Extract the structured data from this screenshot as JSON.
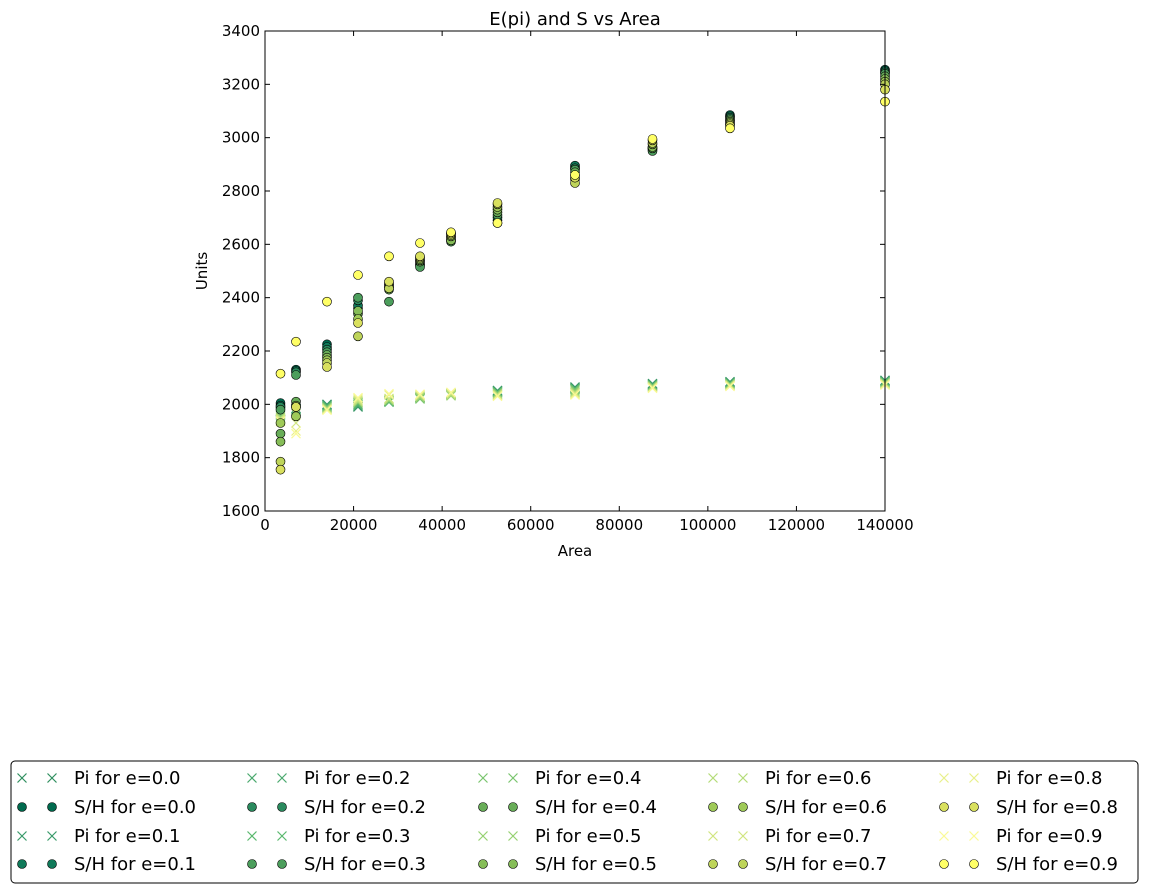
{
  "chart_data": {
    "type": "scatter",
    "title": "E(pi) and S vs Area",
    "xlabel": "Area",
    "ylabel": "Units",
    "xlim": [
      0,
      140000
    ],
    "ylim": [
      1600,
      3400
    ],
    "xticks": [
      "0",
      "20000",
      "40000",
      "60000",
      "80000",
      "100000",
      "120000",
      "140000"
    ],
    "yticks": [
      "1600",
      "1800",
      "2000",
      "2200",
      "2400",
      "2600",
      "2800",
      "3000",
      "3200",
      "3400"
    ],
    "grid": false,
    "legend_position": "below plot, 5 columns",
    "x": [
      3500,
      7000,
      14000,
      21000,
      28000,
      35000,
      42000,
      52500,
      70000,
      87500,
      105000,
      140000
    ],
    "series": [
      {
        "name": "Pi for e=0.0",
        "marker": "x",
        "color": "#2f8f5f",
        "values": [
          1975,
          1985,
          2000,
          1990,
          2010,
          2025,
          2040,
          2050,
          2065,
          2078,
          2085,
          2090
        ]
      },
      {
        "name": "S/H for e=0.0",
        "marker": "o",
        "color": "#006a4e",
        "values": [
          2005,
          2130,
          2225,
          2360,
          2440,
          2520,
          2615,
          2690,
          2890,
          2960,
          3085,
          3255
        ]
      },
      {
        "name": "Pi for e=0.1",
        "marker": "x",
        "color": "#3a9a6a",
        "values": [
          1972,
          1983,
          1998,
          1992,
          2012,
          2027,
          2042,
          2052,
          2063,
          2076,
          2083,
          2088
        ]
      },
      {
        "name": "S/H for e=0.1",
        "marker": "o",
        "color": "#107a5a",
        "values": [
          1995,
          2125,
          2215,
          2370,
          2445,
          2525,
          2620,
          2680,
          2895,
          2965,
          3080,
          3250
        ]
      },
      {
        "name": "Pi for e=0.2",
        "marker": "x",
        "color": "#4aa96e",
        "values": [
          1968,
          1980,
          1995,
          1995,
          2008,
          2024,
          2038,
          2048,
          2060,
          2074,
          2081,
          2086
        ]
      },
      {
        "name": "S/H for e=0.2",
        "marker": "o",
        "color": "#2a8a5e",
        "values": [
          1990,
          2120,
          2205,
          2390,
          2450,
          2530,
          2625,
          2700,
          2885,
          2955,
          3075,
          3245
        ]
      },
      {
        "name": "Pi for e=0.3",
        "marker": "x",
        "color": "#5ab86e",
        "values": [
          1962,
          1978,
          1993,
          2000,
          2010,
          2022,
          2036,
          2046,
          2058,
          2072,
          2079,
          2084
        ]
      },
      {
        "name": "S/H for e=0.3",
        "marker": "o",
        "color": "#4c9e5c",
        "values": [
          1980,
          2110,
          2195,
          2400,
          2385,
          2515,
          2610,
          2710,
          2880,
          2950,
          3070,
          3240
        ]
      },
      {
        "name": "Pi for e=0.4",
        "marker": "x",
        "color": "#79c46e",
        "values": [
          1958,
          1975,
          1990,
          2005,
          2012,
          2020,
          2034,
          2044,
          2055,
          2070,
          2077,
          2082
        ]
      },
      {
        "name": "S/H for e=0.4",
        "marker": "o",
        "color": "#68ad58",
        "values": [
          1890,
          2010,
          2185,
          2340,
          2430,
          2535,
          2640,
          2720,
          2870,
          2960,
          3065,
          3230
        ]
      },
      {
        "name": "Pi for e=0.5",
        "marker": "x",
        "color": "#96d072",
        "values": [
          1952,
          1972,
          1987,
          2008,
          2015,
          2025,
          2032,
          2040,
          2050,
          2068,
          2075,
          2080
        ]
      },
      {
        "name": "S/H for e=0.5",
        "marker": "o",
        "color": "#86bd58",
        "values": [
          1860,
          1995,
          2175,
          2350,
          2440,
          2540,
          2615,
          2730,
          2860,
          2965,
          3060,
          3220
        ]
      },
      {
        "name": "Pi for e=0.6",
        "marker": "x",
        "color": "#b3dc78",
        "values": [
          1948,
          1965,
          1984,
          2010,
          2018,
          2030,
          2035,
          2038,
          2045,
          2066,
          2073,
          2078
        ]
      },
      {
        "name": "S/H for e=0.6",
        "marker": "o",
        "color": "#9fca58",
        "values": [
          1930,
          1955,
          2165,
          2320,
          2455,
          2545,
          2630,
          2740,
          2845,
          2975,
          3055,
          3210
        ]
      },
      {
        "name": "Pi for e=0.7",
        "marker": "x",
        "color": "#d0e680",
        "values": [
          1945,
          1930,
          1982,
          2015,
          2022,
          2033,
          2040,
          2035,
          2042,
          2064,
          2071,
          2076
        ]
      },
      {
        "name": "S/H for e=0.7",
        "marker": "o",
        "color": "#bed45a",
        "values": [
          1785,
          1990,
          2155,
          2255,
          2435,
          2550,
          2635,
          2750,
          2830,
          2980,
          3050,
          3200
        ]
      },
      {
        "name": "Pi for e=0.8",
        "marker": "x",
        "color": "#e8ef8a",
        "values": [
          1940,
          1900,
          1980,
          2020,
          2035,
          2036,
          2043,
          2032,
          2038,
          2062,
          2069,
          2074
        ]
      },
      {
        "name": "S/H for e=0.8",
        "marker": "o",
        "color": "#d9e05e",
        "values": [
          1755,
          1990,
          2140,
          2305,
          2460,
          2555,
          2640,
          2755,
          2850,
          2990,
          3045,
          3180
        ]
      },
      {
        "name": "Pi for e=0.9",
        "marker": "x",
        "color": "#fafa96",
        "values": [
          1935,
          1890,
          1978,
          2025,
          2040,
          2038,
          2045,
          2030,
          2035,
          2060,
          2067,
          2072
        ]
      },
      {
        "name": "S/H for e=0.9",
        "marker": "o",
        "color": "#ffff66",
        "values": [
          2115,
          2235,
          2385,
          2485,
          2555,
          2605,
          2645,
          2680,
          2860,
          2995,
          3035,
          3135
        ]
      }
    ]
  }
}
